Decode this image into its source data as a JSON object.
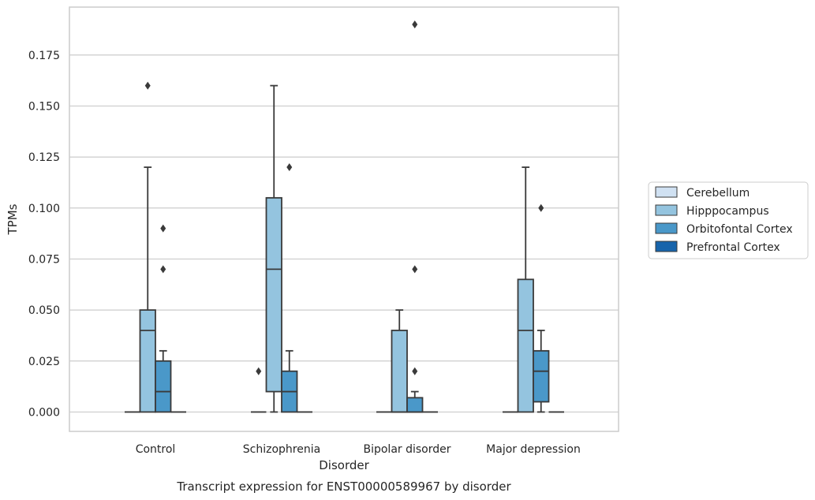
{
  "chart_data": {
    "type": "box",
    "title": "",
    "caption": "Transcript expression for ENST00000589967 by disorder",
    "xlabel": "Disorder",
    "ylabel": "TPMs",
    "ylim": [
      -0.0095,
      0.1985
    ],
    "yticks": [
      "0.000",
      "0.025",
      "0.050",
      "0.075",
      "0.100",
      "0.125",
      "0.150",
      "0.175"
    ],
    "ytick_values": [
      0,
      0.025,
      0.05,
      0.075,
      0.1,
      0.125,
      0.15,
      0.175
    ],
    "grid": "horizontal",
    "legend_position": "right",
    "categories": [
      "Control",
      "Schizophrenia",
      "Bipolar disorder",
      "Major depression"
    ],
    "series": [
      {
        "name": "Cerebellum",
        "color": "#d0e1f2",
        "boxes": [
          {
            "q1": 0,
            "median": 0,
            "q3": 0,
            "whisker_low": 0,
            "whisker_high": 0,
            "outliers": []
          },
          {
            "q1": 0,
            "median": 0,
            "q3": 0,
            "whisker_low": 0,
            "whisker_high": 0,
            "outliers": [
              0.02
            ]
          },
          {
            "q1": 0,
            "median": 0,
            "q3": 0,
            "whisker_low": 0,
            "whisker_high": 0,
            "outliers": []
          },
          {
            "q1": 0,
            "median": 0,
            "q3": 0,
            "whisker_low": 0,
            "whisker_high": 0,
            "outliers": []
          }
        ]
      },
      {
        "name": "Hipppocampus",
        "color": "#94c4df",
        "boxes": [
          {
            "q1": 0,
            "median": 0.04,
            "q3": 0.05,
            "whisker_low": 0,
            "whisker_high": 0.12,
            "outliers": [
              0.16
            ]
          },
          {
            "q1": 0.01,
            "median": 0.07,
            "q3": 0.105,
            "whisker_low": 0,
            "whisker_high": 0.16,
            "outliers": []
          },
          {
            "q1": 0,
            "median": 0,
            "q3": 0.04,
            "whisker_low": 0,
            "whisker_high": 0.05,
            "outliers": []
          },
          {
            "q1": 0,
            "median": 0.04,
            "q3": 0.065,
            "whisker_low": 0,
            "whisker_high": 0.12,
            "outliers": []
          }
        ]
      },
      {
        "name": "Orbitofontal Cortex",
        "color": "#4a98c9",
        "boxes": [
          {
            "q1": 0,
            "median": 0.01,
            "q3": 0.025,
            "whisker_low": 0,
            "whisker_high": 0.03,
            "outliers": [
              0.07,
              0.09
            ]
          },
          {
            "q1": 0,
            "median": 0.01,
            "q3": 0.02,
            "whisker_low": 0,
            "whisker_high": 0.03,
            "outliers": [
              0.12
            ]
          },
          {
            "q1": 0,
            "median": 0,
            "q3": 0.007,
            "whisker_low": 0,
            "whisker_high": 0.01,
            "outliers": [
              0.02,
              0.07,
              0.19
            ]
          },
          {
            "q1": 0.005,
            "median": 0.02,
            "q3": 0.03,
            "whisker_low": 0,
            "whisker_high": 0.04,
            "outliers": [
              0.1
            ]
          }
        ]
      },
      {
        "name": "Prefrontal Cortex",
        "color": "#1764ab",
        "boxes": [
          {
            "q1": 0,
            "median": 0,
            "q3": 0,
            "whisker_low": 0,
            "whisker_high": 0,
            "outliers": []
          },
          {
            "q1": 0,
            "median": 0,
            "q3": 0,
            "whisker_low": 0,
            "whisker_high": 0,
            "outliers": []
          },
          {
            "q1": 0,
            "median": 0,
            "q3": 0,
            "whisker_low": 0,
            "whisker_high": 0,
            "outliers": []
          },
          {
            "q1": 0,
            "median": 0,
            "q3": 0,
            "whisker_low": 0,
            "whisker_high": 0,
            "outliers": []
          }
        ]
      }
    ]
  }
}
